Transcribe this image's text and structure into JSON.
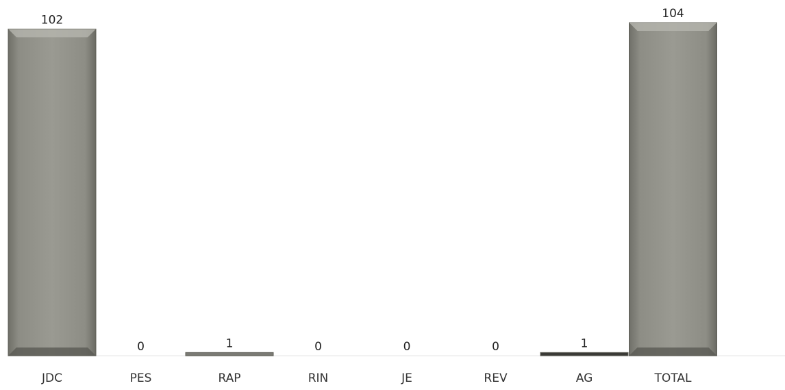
{
  "chart_data": {
    "type": "bar",
    "title": "",
    "xlabel": "",
    "ylabel": "",
    "categories": [
      "JDC",
      "PES",
      "RAP",
      "RIN",
      "JE",
      "REV",
      "AG",
      "TOTAL"
    ],
    "values": [
      102,
      0,
      1,
      0,
      0,
      0,
      1,
      104
    ],
    "data_labels": [
      "102",
      "0",
      "1",
      "0",
      "0",
      "0",
      "1",
      "104"
    ],
    "ylim": [
      0,
      104
    ],
    "grid": false,
    "legend": "none",
    "bar_color": "#8a8a80",
    "bar_edge_color": "#5e5e56"
  }
}
